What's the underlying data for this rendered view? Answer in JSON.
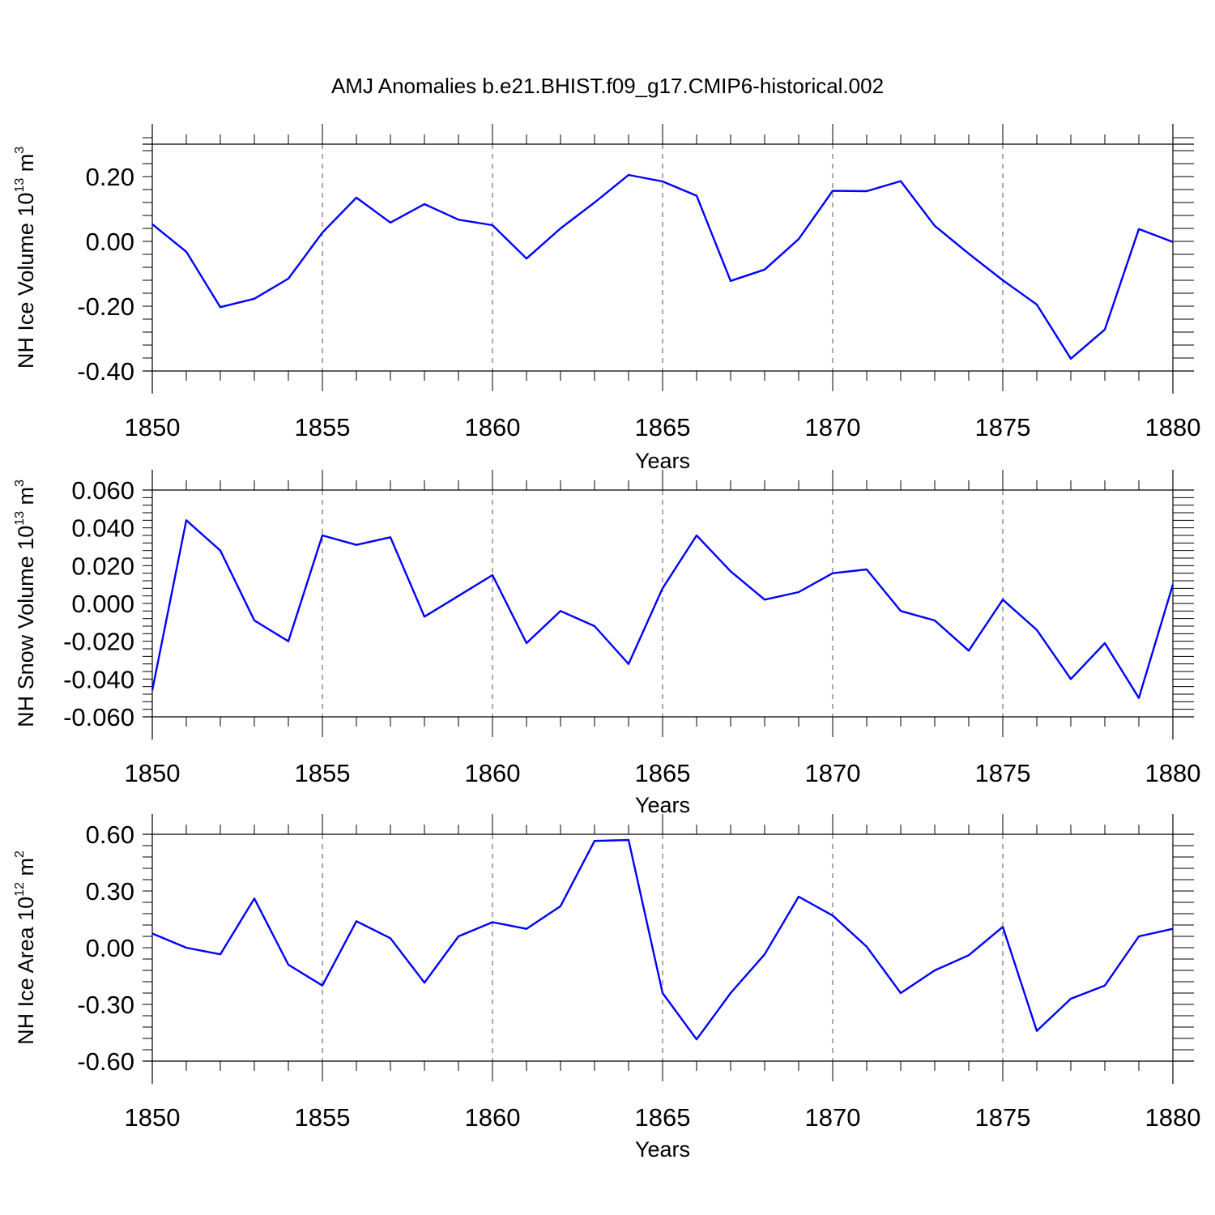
{
  "title": "AMJ Anomalies b.e21.BHIST.f09_g17.CMIP6-historical.002",
  "line_color": "#0000ff",
  "chart_data": [
    {
      "type": "line",
      "xlabel": "Years",
      "ylabel": {
        "main": "NH Ice Volume 10",
        "exp": "13",
        "unit": " m",
        "unit_exp": "3"
      },
      "xlim": [
        1850,
        1880
      ],
      "ylim": [
        -0.4,
        0.3
      ],
      "xticks": [
        1850,
        1855,
        1860,
        1865,
        1870,
        1875,
        1880
      ],
      "yticks": [
        "0.20",
        "0.00",
        "-0.20",
        "-0.40"
      ],
      "ytick_values": [
        0.2,
        0.0,
        -0.2,
        -0.4
      ],
      "grid": "vertical dashed at major x ticks",
      "x": [
        1850,
        1851,
        1852,
        1853,
        1854,
        1855,
        1856,
        1857,
        1858,
        1859,
        1860,
        1861,
        1862,
        1863,
        1864,
        1865,
        1866,
        1867,
        1868,
        1869,
        1870,
        1871,
        1872,
        1873,
        1874,
        1875,
        1876,
        1877,
        1878,
        1879,
        1880
      ],
      "y": [
        0.053,
        -0.032,
        -0.203,
        -0.177,
        -0.115,
        0.027,
        0.135,
        0.058,
        0.115,
        0.067,
        0.05,
        -0.053,
        0.04,
        0.12,
        0.205,
        0.185,
        0.141,
        -0.122,
        -0.087,
        0.007,
        0.156,
        0.155,
        0.186,
        0.048,
        -0.038,
        -0.12,
        -0.195,
        -0.362,
        -0.272,
        0.038,
        -0.002
      ]
    },
    {
      "type": "line",
      "xlabel": "Years",
      "ylabel": {
        "main": "NH Snow Volume 10",
        "exp": "13",
        "unit": " m",
        "unit_exp": "3"
      },
      "xlim": [
        1850,
        1880
      ],
      "ylim": [
        -0.06,
        0.06
      ],
      "xticks": [
        1850,
        1855,
        1860,
        1865,
        1870,
        1875,
        1880
      ],
      "yticks": [
        "0.060",
        "0.040",
        "0.020",
        "0.000",
        "-0.020",
        "-0.040",
        "-0.060"
      ],
      "ytick_values": [
        0.06,
        0.04,
        0.02,
        0.0,
        -0.02,
        -0.04,
        -0.06
      ],
      "grid": "vertical dashed at major x ticks",
      "x": [
        1850,
        1851,
        1852,
        1853,
        1854,
        1855,
        1856,
        1857,
        1858,
        1859,
        1860,
        1861,
        1862,
        1863,
        1864,
        1865,
        1866,
        1867,
        1868,
        1869,
        1870,
        1871,
        1872,
        1873,
        1874,
        1875,
        1876,
        1877,
        1878,
        1879,
        1880
      ],
      "y": [
        -0.046,
        0.044,
        0.028,
        -0.009,
        -0.02,
        0.036,
        0.031,
        0.035,
        -0.007,
        0.004,
        0.015,
        -0.021,
        -0.004,
        -0.012,
        -0.032,
        0.008,
        0.036,
        0.017,
        0.002,
        0.006,
        0.016,
        0.018,
        -0.004,
        -0.009,
        -0.025,
        0.002,
        -0.014,
        -0.04,
        -0.021,
        -0.05,
        0.01
      ]
    },
    {
      "type": "line",
      "xlabel": "Years",
      "ylabel": {
        "main": "NH Ice Area 10",
        "exp": "12",
        "unit": " m",
        "unit_exp": "2"
      },
      "xlim": [
        1850,
        1880
      ],
      "ylim": [
        -0.6,
        0.6
      ],
      "xticks": [
        1850,
        1855,
        1860,
        1865,
        1870,
        1875,
        1880
      ],
      "yticks": [
        "0.60",
        "0.30",
        "0.00",
        "-0.30",
        "-0.60"
      ],
      "ytick_values": [
        0.6,
        0.3,
        0.0,
        -0.3,
        -0.6
      ],
      "grid": "vertical dashed at major x ticks",
      "x": [
        1850,
        1851,
        1852,
        1853,
        1854,
        1855,
        1856,
        1857,
        1858,
        1859,
        1860,
        1861,
        1862,
        1863,
        1864,
        1865,
        1866,
        1867,
        1868,
        1869,
        1870,
        1871,
        1872,
        1873,
        1874,
        1875,
        1876,
        1877,
        1878,
        1879,
        1880
      ],
      "y": [
        0.075,
        0.0,
        -0.035,
        0.26,
        -0.09,
        -0.2,
        0.14,
        0.05,
        -0.185,
        0.06,
        0.135,
        0.1,
        0.22,
        0.565,
        0.57,
        -0.24,
        -0.485,
        -0.24,
        -0.035,
        0.27,
        0.17,
        0.005,
        -0.24,
        -0.12,
        -0.04,
        0.11,
        -0.44,
        -0.27,
        -0.2,
        0.06,
        0.1
      ]
    }
  ]
}
